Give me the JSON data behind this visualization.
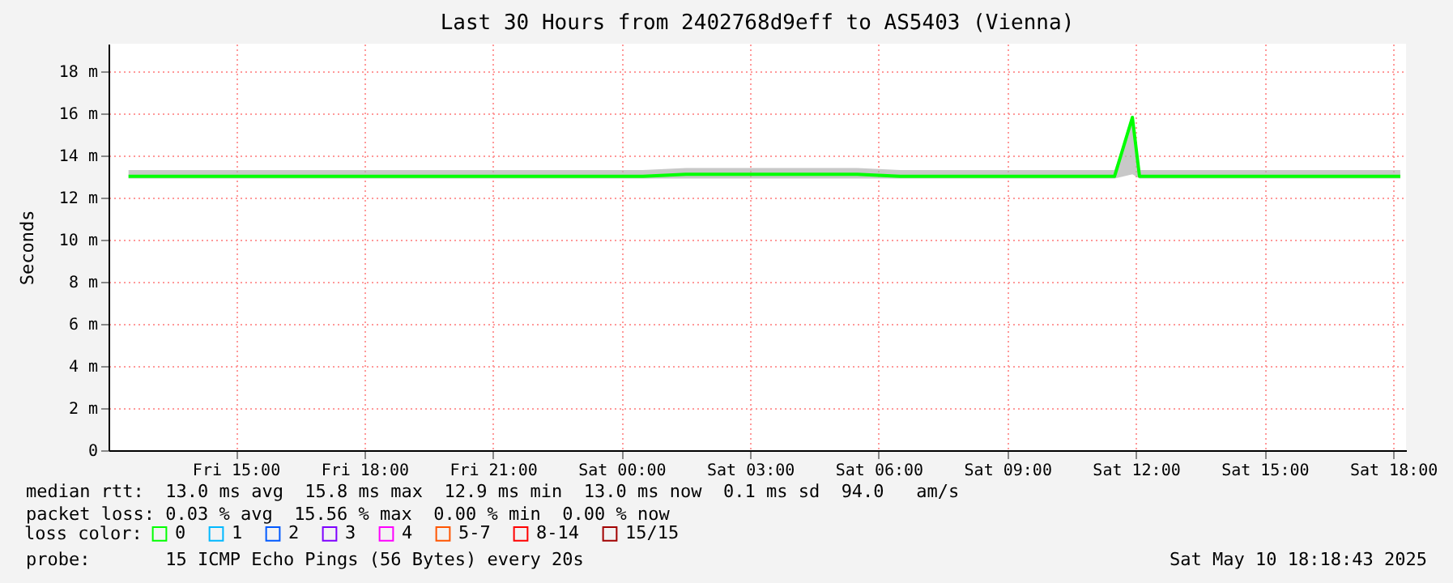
{
  "chart_data": {
    "type": "line",
    "title": "Last 30 Hours from 2402768d9eff to AS5403 (Vienna)",
    "ylabel": "Seconds",
    "legend_title": "loss color:",
    "legend": "bottom",
    "grid": true,
    "xlim": [
      "2025-05-09T12:02",
      "2025-05-10T18:18"
    ],
    "xticks": [
      {
        "value": "2025-05-09T15:00",
        "label": "Fri 15:00"
      },
      {
        "value": "2025-05-09T18:00",
        "label": "Fri 18:00"
      },
      {
        "value": "2025-05-09T21:00",
        "label": "Fri 21:00"
      },
      {
        "value": "2025-05-10T00:00",
        "label": "Sat 00:00"
      },
      {
        "value": "2025-05-10T03:00",
        "label": "Sat 03:00"
      },
      {
        "value": "2025-05-10T06:00",
        "label": "Sat 06:00"
      },
      {
        "value": "2025-05-10T09:00",
        "label": "Sat 09:00"
      },
      {
        "value": "2025-05-10T12:00",
        "label": "Sat 12:00"
      },
      {
        "value": "2025-05-10T15:00",
        "label": "Sat 15:00"
      },
      {
        "value": "2025-05-10T18:00",
        "label": "Sat 18:00"
      }
    ],
    "ylim": [
      0,
      19.3
    ],
    "yticks": [
      0,
      {
        "value": 2,
        "label": "2 m"
      },
      {
        "value": 4,
        "label": "4 m"
      },
      {
        "value": 6,
        "label": "6 m"
      },
      {
        "value": 8,
        "label": "8 m"
      },
      {
        "value": 10,
        "label": "10 m"
      },
      {
        "value": 12,
        "label": "12 m"
      },
      {
        "value": 14,
        "label": "14 m"
      },
      {
        "value": 16,
        "label": "16 m"
      },
      {
        "value": 18,
        "label": "18 m"
      }
    ],
    "x": [
      "2025-05-09T12:30",
      "2025-05-09T13:30",
      "2025-05-09T14:30",
      "2025-05-09T15:30",
      "2025-05-09T16:30",
      "2025-05-09T17:30",
      "2025-05-09T18:30",
      "2025-05-09T19:30",
      "2025-05-09T20:30",
      "2025-05-09T21:30",
      "2025-05-09T22:30",
      "2025-05-09T23:30",
      "2025-05-10T00:30",
      "2025-05-10T01:30",
      "2025-05-10T02:30",
      "2025-05-10T03:30",
      "2025-05-10T04:30",
      "2025-05-10T05:30",
      "2025-05-10T06:30",
      "2025-05-10T07:30",
      "2025-05-10T08:30",
      "2025-05-10T09:30",
      "2025-05-10T10:30",
      "2025-05-10T11:30",
      "2025-05-10T11:55",
      "2025-05-10T12:05",
      "2025-05-10T12:30",
      "2025-05-10T13:30",
      "2025-05-10T14:30",
      "2025-05-10T15:30",
      "2025-05-10T16:30",
      "2025-05-10T17:30",
      "2025-05-10T18:10"
    ],
    "series": [
      {
        "name": "0",
        "color": "#00ff00",
        "values": [
          13.0,
          13.0,
          13.0,
          13.0,
          13.0,
          13.0,
          13.0,
          13.0,
          13.0,
          13.0,
          13.0,
          13.0,
          13.0,
          13.1,
          13.1,
          13.1,
          13.1,
          13.1,
          13.0,
          13.0,
          13.0,
          13.0,
          13.0,
          13.0,
          15.8,
          13.0,
          13.0,
          13.0,
          13.0,
          13.0,
          13.0,
          13.0,
          13.0
        ],
        "lower": [
          12.9,
          12.9,
          12.9,
          12.9,
          12.9,
          12.9,
          12.9,
          12.9,
          12.9,
          12.9,
          12.9,
          12.9,
          12.9,
          12.9,
          12.9,
          12.9,
          12.9,
          12.9,
          12.9,
          12.9,
          12.9,
          12.9,
          12.9,
          12.9,
          13.1,
          12.9,
          12.9,
          12.9,
          12.9,
          12.9,
          12.9,
          12.9,
          12.9
        ],
        "upper": [
          13.3,
          13.3,
          13.3,
          13.3,
          13.3,
          13.3,
          13.3,
          13.3,
          13.3,
          13.3,
          13.3,
          13.3,
          13.3,
          13.4,
          13.4,
          13.4,
          13.4,
          13.4,
          13.3,
          13.3,
          13.3,
          13.3,
          13.3,
          13.3,
          15.8,
          13.3,
          13.3,
          13.3,
          13.3,
          13.3,
          13.3,
          13.3,
          13.3
        ]
      },
      {
        "name": "1",
        "color": "#00b8ff",
        "values": [
          null,
          null,
          null,
          null,
          null,
          null,
          null,
          null,
          null,
          null,
          null,
          null,
          null,
          null,
          null,
          null,
          null,
          null,
          null,
          null,
          null,
          null,
          null,
          null,
          null,
          null,
          null,
          null,
          null,
          null,
          null,
          null,
          null
        ]
      },
      {
        "name": "2",
        "color": "#0059ff",
        "values": [
          null,
          null,
          null,
          null,
          null,
          null,
          null,
          null,
          null,
          null,
          null,
          null,
          null,
          null,
          null,
          null,
          null,
          null,
          null,
          null,
          null,
          null,
          null,
          null,
          null,
          null,
          null,
          null,
          null,
          null,
          null,
          null,
          null
        ]
      },
      {
        "name": "3",
        "color": "#7e00ff",
        "values": [
          null,
          null,
          null,
          null,
          null,
          null,
          null,
          null,
          null,
          null,
          null,
          null,
          null,
          null,
          null,
          null,
          null,
          null,
          null,
          null,
          null,
          null,
          null,
          null,
          null,
          null,
          null,
          null,
          null,
          null,
          null,
          null,
          null
        ]
      },
      {
        "name": "4",
        "color": "#ff00ff",
        "values": [
          null,
          null,
          null,
          null,
          null,
          null,
          null,
          null,
          null,
          null,
          null,
          null,
          null,
          null,
          null,
          null,
          null,
          null,
          null,
          null,
          null,
          null,
          null,
          null,
          null,
          null,
          null,
          null,
          null,
          null,
          null,
          null,
          null
        ]
      },
      {
        "name": "5-7",
        "color": "#ff5500",
        "values": [
          null,
          null,
          null,
          null,
          null,
          null,
          null,
          null,
          null,
          null,
          null,
          null,
          null,
          null,
          null,
          null,
          null,
          null,
          null,
          null,
          null,
          null,
          null,
          null,
          null,
          null,
          null,
          null,
          null,
          null,
          null,
          null,
          null
        ]
      },
      {
        "name": "8-14",
        "color": "#ff0000",
        "values": [
          null,
          null,
          null,
          null,
          null,
          null,
          null,
          null,
          null,
          null,
          null,
          null,
          null,
          null,
          null,
          null,
          null,
          null,
          null,
          null,
          null,
          null,
          null,
          null,
          null,
          null,
          null,
          null,
          null,
          null,
          null,
          null,
          null
        ]
      },
      {
        "name": "15/15",
        "color": "#a10000",
        "values": [
          null,
          null,
          null,
          null,
          null,
          null,
          null,
          null,
          null,
          null,
          null,
          null,
          null,
          null,
          null,
          null,
          null,
          null,
          null,
          null,
          null,
          null,
          null,
          null,
          null,
          null,
          null,
          null,
          null,
          null,
          null,
          null,
          null
        ]
      }
    ],
    "annotations": [
      "median rtt:  13.0 ms avg  15.8 ms max  12.9 ms min  13.0 ms now  0.1 ms sd  94.0   am/s",
      "packet loss: 0.03 % avg  15.56 % max  0.00 % min  0.00 % now",
      "probe:       15 ICMP Echo Pings (56 Bytes) every 20s",
      "Sat May 10 18:18:43 2025"
    ]
  }
}
